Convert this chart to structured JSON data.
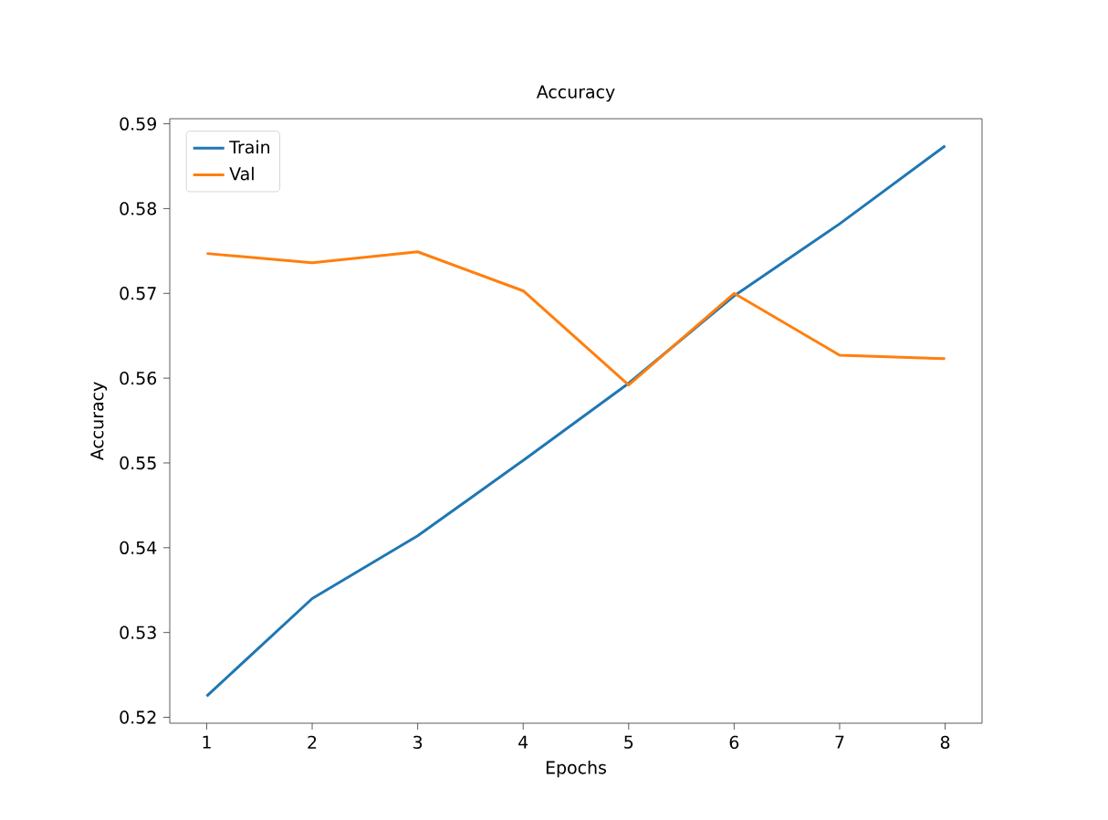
{
  "chart_data": {
    "type": "line",
    "title": "Accuracy",
    "xlabel": "Epochs",
    "ylabel": "Accuracy",
    "x": [
      1,
      2,
      3,
      4,
      5,
      6,
      7,
      8
    ],
    "series": [
      {
        "name": "Train",
        "color": "#1f77b4",
        "values": [
          0.5225,
          0.534,
          0.5414,
          0.5503,
          0.5594,
          0.5697,
          0.5782,
          0.5874
        ]
      },
      {
        "name": "Val",
        "color": "#ff7f0e",
        "values": [
          0.5747,
          0.5736,
          0.5749,
          0.5703,
          0.5592,
          0.57,
          0.5627,
          0.5623
        ]
      }
    ],
    "xlim": [
      0.65,
      8.35
    ],
    "ylim": [
      0.5193,
      0.5906
    ],
    "xticks": [
      1,
      2,
      3,
      4,
      5,
      6,
      7,
      8
    ],
    "yticks": [
      0.52,
      0.53,
      0.54,
      0.55,
      0.56,
      0.57,
      0.58,
      0.59
    ],
    "legend": "top left",
    "grid": false
  }
}
